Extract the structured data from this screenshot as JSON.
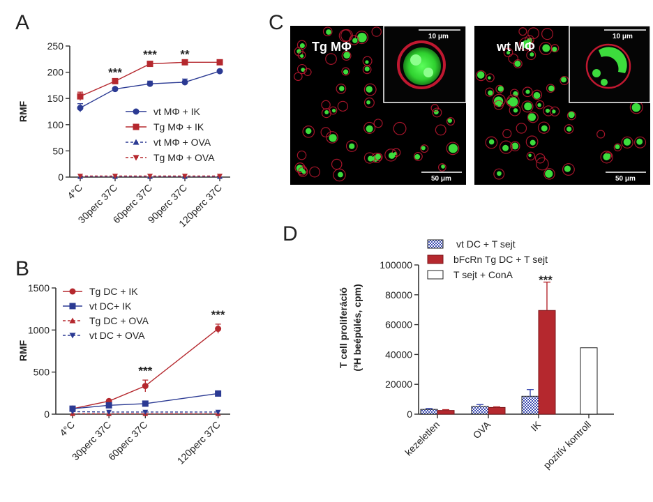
{
  "panel_labels": {
    "a": "A",
    "b": "B",
    "c": "C",
    "d": "D"
  },
  "colors": {
    "blue": "#2b3a93",
    "red": "#b5282e",
    "axis": "#333333",
    "green": "#3ddc3d",
    "cellred": "#c01830"
  },
  "micrographs": [
    {
      "label": "Tg MΦ",
      "inset_scale": "10 μm",
      "main_scale": "50 μm"
    },
    {
      "label": "wt MΦ",
      "inset_scale": "10 μm",
      "main_scale": "50 μm"
    }
  ],
  "chart_data": [
    {
      "panel": "A",
      "type": "line",
      "ylabel": "RMF",
      "xlabel": "",
      "categories": [
        "4°C",
        "30perc 37C",
        "60perc 37C",
        "90perc 37C",
        "120perc 37C"
      ],
      "ylim": [
        0,
        250
      ],
      "yticks": [
        0,
        50,
        100,
        150,
        200,
        250
      ],
      "legend_position": "center-right",
      "series": [
        {
          "name": "vt MΦ + IK",
          "marker": "circle",
          "color": "#2b3a93",
          "dashed": false,
          "values": [
            132,
            168,
            178,
            181,
            202
          ],
          "err": [
            8,
            2,
            5,
            6,
            2
          ]
        },
        {
          "name": "Tg MΦ + IK",
          "marker": "square",
          "color": "#b5282e",
          "dashed": false,
          "values": [
            154,
            183,
            216,
            219,
            219
          ],
          "err": [
            8,
            2,
            2,
            2,
            2
          ]
        },
        {
          "name": "vt MΦ + OVA",
          "marker": "triangle-up",
          "color": "#2b3a93",
          "dashed": true,
          "values": [
            1,
            1,
            1,
            1,
            1
          ],
          "err": [
            0,
            0,
            0,
            0,
            0
          ]
        },
        {
          "name": "Tg MΦ + OVA",
          "marker": "triangle-down",
          "color": "#b5282e",
          "dashed": true,
          "values": [
            2,
            2,
            2,
            2,
            2
          ],
          "err": [
            0,
            0,
            0,
            0,
            0
          ]
        }
      ],
      "annotations": [
        {
          "category": "30perc 37C",
          "text": "***",
          "y": 192
        },
        {
          "category": "60perc 37C",
          "text": "***",
          "y": 226
        },
        {
          "category": "90perc 37C",
          "text": "**",
          "y": 227
        }
      ]
    },
    {
      "panel": "B",
      "type": "line",
      "ylabel": "RMF",
      "xlabel": "",
      "x": [
        0,
        30,
        60,
        120
      ],
      "xtick_labels": [
        "4°C",
        "30perc 37C",
        "60perc 37C",
        "120perc 37C"
      ],
      "xlim": [
        0,
        130
      ],
      "ylim": [
        0,
        1500
      ],
      "yticks": [
        0,
        500,
        1000,
        1500
      ],
      "legend_position": "top-left",
      "series": [
        {
          "name": "Tg DC + IK",
          "marker": "circle",
          "color": "#b5282e",
          "dashed": false,
          "values": [
            65,
            155,
            335,
            1015
          ],
          "err": [
            5,
            10,
            70,
            55
          ]
        },
        {
          "name": "vt DC+ IK",
          "marker": "square",
          "color": "#2b3a93",
          "dashed": false,
          "values": [
            65,
            105,
            125,
            245
          ],
          "err": [
            5,
            5,
            10,
            10
          ]
        },
        {
          "name": "Tg DC + OVA",
          "marker": "triangle-up",
          "color": "#b5282e",
          "dashed": true,
          "values": [
            5,
            5,
            5,
            5
          ],
          "err": [
            0,
            0,
            0,
            0
          ]
        },
        {
          "name": "vt DC + OVA",
          "marker": "triangle-down",
          "color": "#2b3a93",
          "dashed": true,
          "values": [
            30,
            25,
            25,
            25
          ],
          "err": [
            0,
            0,
            0,
            0
          ]
        }
      ],
      "annotations": [
        {
          "x": 60,
          "text": "***",
          "y": 470
        },
        {
          "x": 120,
          "text": "***",
          "y": 1135
        }
      ]
    },
    {
      "panel": "D",
      "type": "bar",
      "ylabel": "T cell proliferáció",
      "ylabel_line2": "(³H beépülés, cpm)",
      "categories": [
        "kezeletlen",
        "OVA",
        "IK",
        "pozitív kontroll"
      ],
      "ylim": [
        0,
        100000
      ],
      "yticks": [
        0,
        20000,
        40000,
        60000,
        80000,
        100000
      ],
      "legend_position": "top-left",
      "series": [
        {
          "name": "vt DC + T sejt",
          "fill": "hatched-blue",
          "values": [
            3200,
            5200,
            12000,
            null
          ],
          "err": [
            600,
            1200,
            4500,
            0
          ]
        },
        {
          "name": "bFcRn Tg DC + T sejt",
          "fill": "#b5282e",
          "values": [
            2500,
            4500,
            69500,
            null
          ],
          "err": [
            500,
            400,
            19000,
            0
          ]
        },
        {
          "name": "T sejt + ConA",
          "fill": "white",
          "values": [
            null,
            null,
            null,
            44500
          ],
          "err": [
            0,
            0,
            0,
            0
          ]
        }
      ],
      "annotations": [
        {
          "category": "IK",
          "text": "***",
          "y": 92000
        }
      ]
    }
  ]
}
